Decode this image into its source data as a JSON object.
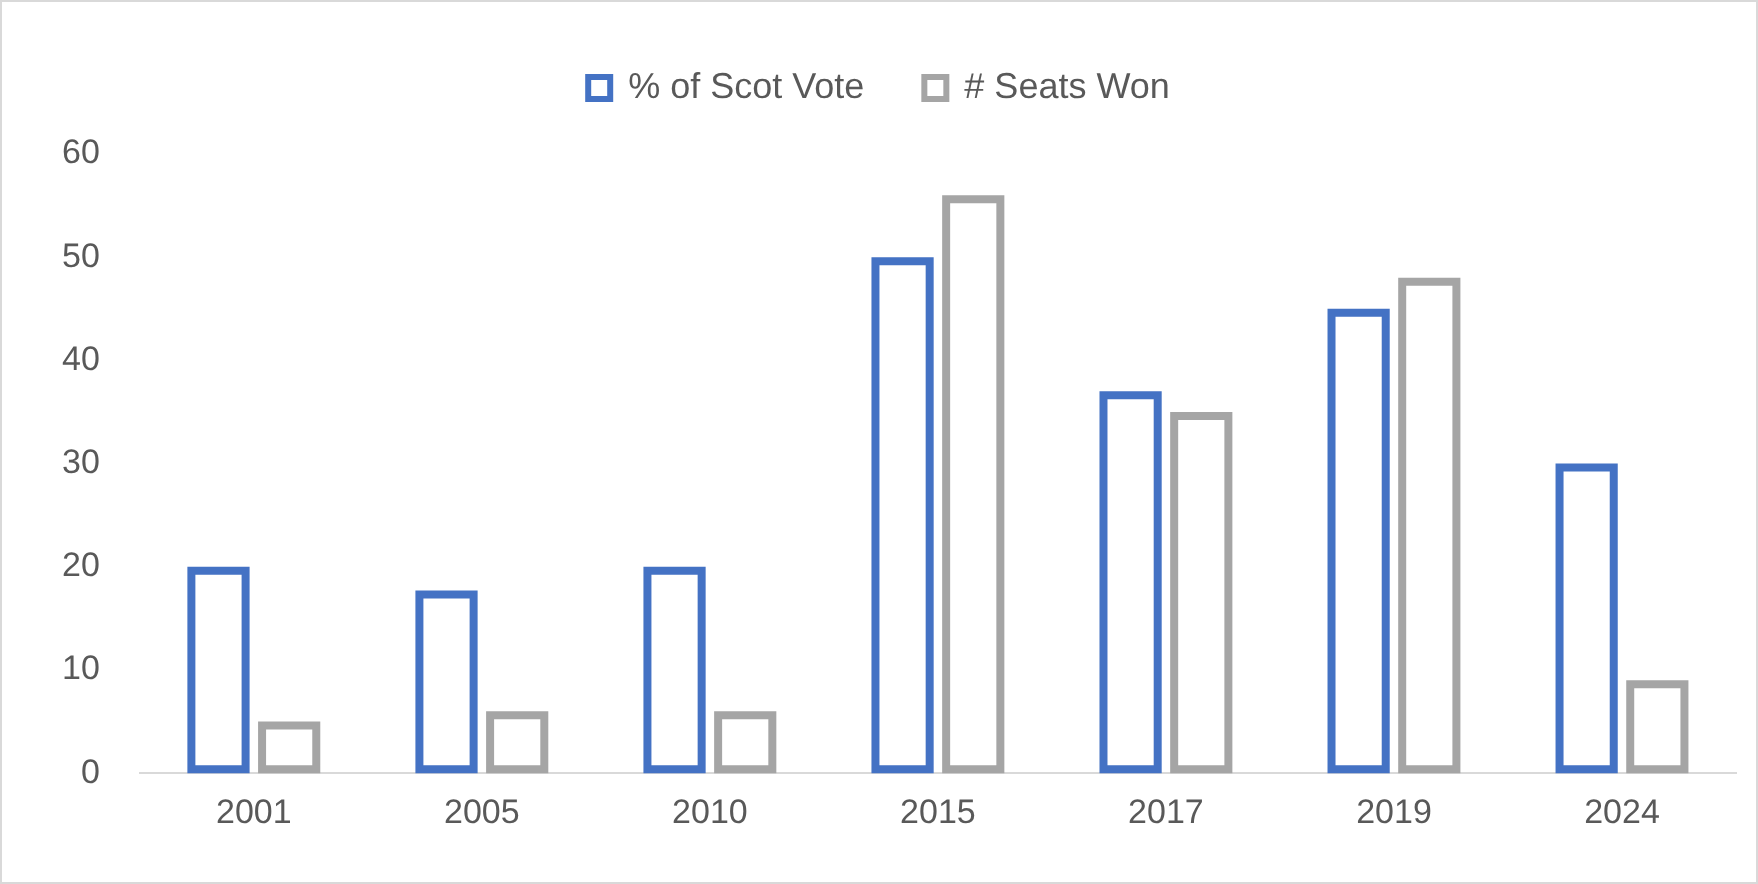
{
  "chart_data": {
    "type": "bar",
    "categories": [
      "2001",
      "2005",
      "2010",
      "2015",
      "2017",
      "2019",
      "2024"
    ],
    "series": [
      {
        "name": "% of Scot Vote",
        "color": "#4472c4",
        "values": [
          20,
          17.7,
          20,
          50,
          37,
          45,
          30
        ]
      },
      {
        "name": "# Seats Won",
        "color": "#a5a5a5",
        "values": [
          5,
          6,
          6,
          56,
          35,
          48,
          9
        ]
      }
    ],
    "ylim": [
      0,
      60
    ],
    "yticks": [
      0,
      10,
      20,
      30,
      40,
      50,
      60
    ],
    "grid": false,
    "legend": "top"
  }
}
